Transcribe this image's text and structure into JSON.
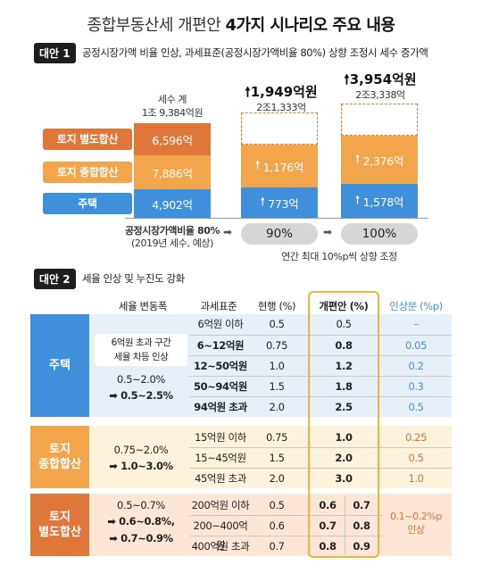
{
  "title_plain": "종합부동산세 개편안 ",
  "title_bold": "4가지 시나리오 주요 내용",
  "plan1": {
    "badge": "대안 1",
    "desc": "공정시장가액 비율 인상, 과세표준(공정시장가액비율 80%) 상향 조정시 세수 증가액",
    "labels": [
      "토지 별도합산",
      "토지 종합합산",
      "주택"
    ],
    "col1_top": "세수 계",
    "col1_total": "1조 9,384억원",
    "col1_values": [
      "6,596억",
      "7,886억",
      "4,902억"
    ],
    "col2_increase": "1,949억원",
    "col2_total": "2조1,333억",
    "col2_values": [
      "1,176억",
      "773억"
    ],
    "col3_increase": "3,954억원",
    "col3_total": "2조3,338억",
    "col3_values": [
      "2,376억",
      "1,578억"
    ],
    "axis_label1": "공정시장가액비율 80%",
    "axis_label2": "(2019년 세수, 예상)",
    "pill2": "90%",
    "pill3": "100%",
    "footnote": "연간 최대 10%p씩 상향 조정",
    "colors": {
      "separate": "#e0773a",
      "aggregate": "#f2a54a",
      "house": "#3f8fdb"
    }
  },
  "plan2": {
    "badge": "대안 2",
    "desc": "세율 인상 및 누진도 강화",
    "headers": [
      "세율 변동폭",
      "과세표준",
      "현행 (%)",
      "개편안 (%)",
      "인상분 (%p)"
    ],
    "housing": {
      "name": "주택",
      "note_line1": "6억원 초과 구간",
      "note_line2": "세율 차등 인상",
      "range_old": "0.5~2.0%",
      "range_new": "0.5~2.5%",
      "rows": [
        {
          "base": "6억원 이하",
          "cur": "0.5",
          "new": "0.5",
          "inc": "–"
        },
        {
          "base": "6~12억원",
          "cur": "0.75",
          "new": "0.8",
          "inc": "0.05"
        },
        {
          "base": "12~50억원",
          "cur": "1.0",
          "new": "1.2",
          "inc": "0.2"
        },
        {
          "base": "50~94억원",
          "cur": "1.5",
          "new": "1.8",
          "inc": "0.3"
        },
        {
          "base": "94억원 초과",
          "cur": "2.0",
          "new": "2.5",
          "inc": "0.5"
        }
      ]
    },
    "aggregate": {
      "name_line1": "토지",
      "name_line2": "종합합산",
      "range_old": "0.75~2.0%",
      "range_new": "1.0~3.0%",
      "rows": [
        {
          "base": "15억원 이하",
          "cur": "0.75",
          "new": "1.0",
          "inc": "0.25"
        },
        {
          "base": "15~45억원",
          "cur": "1.5",
          "new": "2.0",
          "inc": "0.5"
        },
        {
          "base": "45억원 초과",
          "cur": "2.0",
          "new": "3.0",
          "inc": "1.0"
        }
      ]
    },
    "separate": {
      "name_line1": "토지",
      "name_line2": "별도합산",
      "range_old": "0.5~0.7%",
      "range_new1": "0.6~0.8%,",
      "range_new2": "0.7~0.9%",
      "inc_line1": "0.1~0.2%p",
      "inc_line2": "인상",
      "rows": [
        {
          "base": "200억원 이하",
          "cur": "0.5",
          "new1": "0.6",
          "new2": "0.7"
        },
        {
          "base": "200~400억원",
          "cur": "0.6",
          "new1": "0.7",
          "new2": "0.8"
        },
        {
          "base": "400억원 초과",
          "cur": "0.7",
          "new1": "0.8",
          "new2": "0.9"
        }
      ]
    }
  }
}
